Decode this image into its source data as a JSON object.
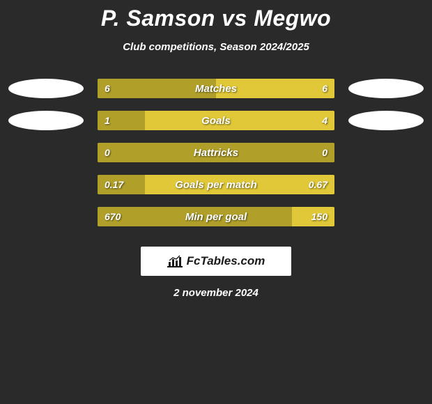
{
  "title": "P. Samson vs Megwo",
  "subtitle": "Club competitions, Season 2024/2025",
  "date": "2 november 2024",
  "footer_brand": "FcTables.com",
  "colors": {
    "background": "#2a2a2a",
    "player1_bar": "#b0a02a",
    "player2_bar": "#e0c838",
    "ellipse_left": "#ffffff",
    "ellipse_right": "#ffffff",
    "text": "#ffffff"
  },
  "rows": [
    {
      "label": "Matches",
      "p1_value": "6",
      "p2_value": "6",
      "p1_pct": 50,
      "p2_pct": 50,
      "ellipse_left": true,
      "ellipse_right": true
    },
    {
      "label": "Goals",
      "p1_value": "1",
      "p2_value": "4",
      "p1_pct": 20,
      "p2_pct": 80,
      "ellipse_left": true,
      "ellipse_right": true
    },
    {
      "label": "Hattricks",
      "p1_value": "0",
      "p2_value": "0",
      "p1_pct": 100,
      "p2_pct": 0,
      "ellipse_left": false,
      "ellipse_right": false
    },
    {
      "label": "Goals per match",
      "p1_value": "0.17",
      "p2_value": "0.67",
      "p1_pct": 20,
      "p2_pct": 80,
      "ellipse_left": false,
      "ellipse_right": false
    },
    {
      "label": "Min per goal",
      "p1_value": "670",
      "p2_value": "150",
      "p1_pct": 82,
      "p2_pct": 18,
      "ellipse_left": false,
      "ellipse_right": false
    }
  ]
}
